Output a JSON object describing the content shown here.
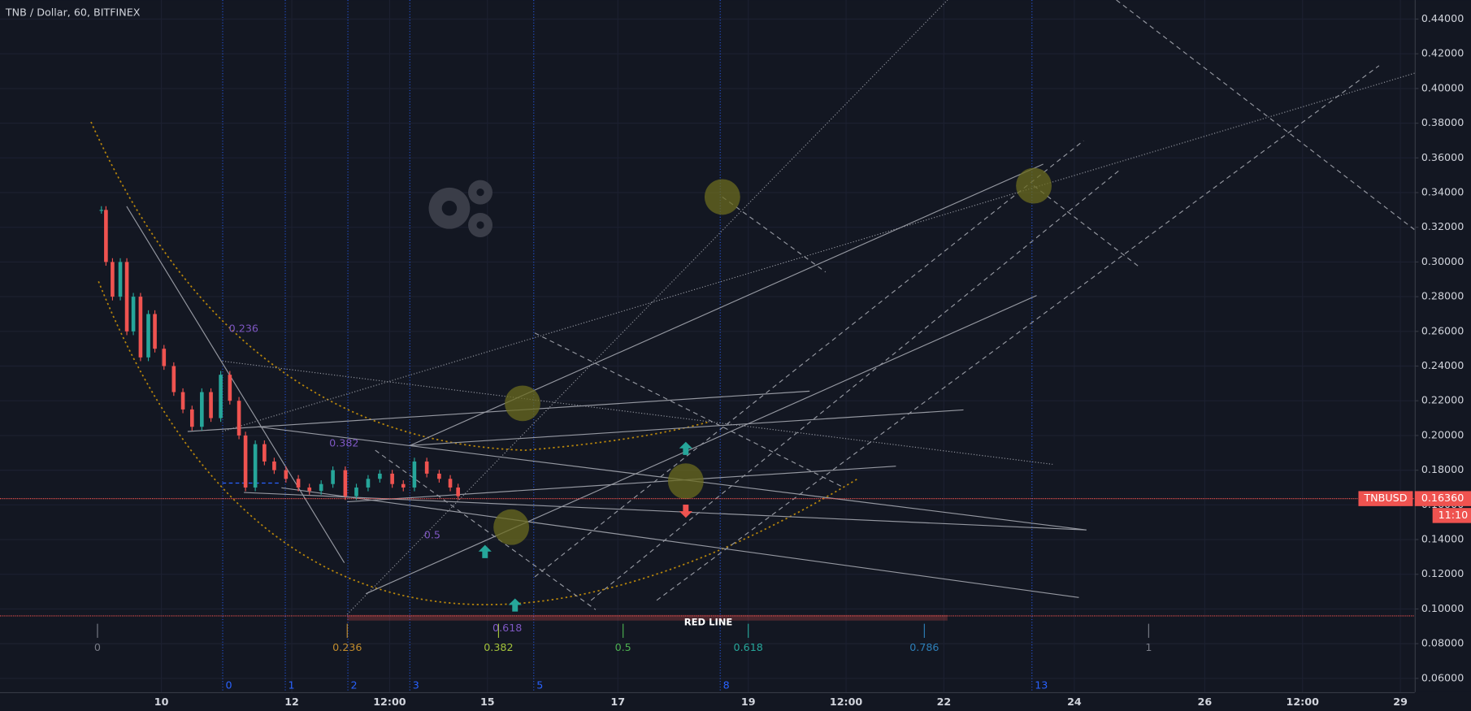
{
  "chart_data": {
    "type": "candlestick",
    "title": "TNB / Dollar, 60, BITFINEX",
    "x": [
      9.08,
      9.15,
      9.25,
      9.37,
      9.47,
      9.57,
      9.68,
      9.8,
      9.9,
      10.04,
      10.19,
      10.33,
      10.47,
      10.62,
      10.76,
      10.91,
      11.05,
      11.19,
      11.29,
      11.44,
      11.58,
      11.73,
      11.91,
      12.1,
      12.27,
      12.45,
      12.63,
      12.82,
      12.99,
      13.17,
      13.35,
      13.54,
      13.71,
      13.88,
      14.07,
      14.26,
      14.43,
      14.55
    ],
    "values": [
      0.33,
      0.3,
      0.28,
      0.3,
      0.26,
      0.28,
      0.245,
      0.27,
      0.25,
      0.24,
      0.225,
      0.215,
      0.205,
      0.225,
      0.21,
      0.235,
      0.22,
      0.2,
      0.17,
      0.195,
      0.185,
      0.18,
      0.175,
      0.17,
      0.168,
      0.172,
      0.18,
      0.165,
      0.17,
      0.175,
      0.178,
      0.172,
      0.17,
      0.185,
      0.178,
      0.175,
      0.17,
      0.165
    ],
    "up_color": "#26a69a",
    "down_color": "#ef5350",
    "xlim": [
      7.525,
      29.22
    ],
    "ylim": [
      0.052,
      0.451
    ],
    "xticks": [
      10,
      12,
      {
        "value": 13.5,
        "label": "12:00"
      },
      15,
      17,
      19,
      {
        "value": 20.5,
        "label": "12:00"
      },
      22,
      24,
      26,
      {
        "value": 27.5,
        "label": "12:00"
      },
      29
    ],
    "yticks": [
      {
        "value": 0.06,
        "label": "0.06000"
      },
      {
        "value": 0.08,
        "label": "0.08000"
      },
      {
        "value": 0.1,
        "label": "0.10000"
      },
      {
        "value": 0.12,
        "label": "0.12000"
      },
      {
        "value": 0.14,
        "label": "0.14000"
      },
      {
        "value": 0.16,
        "label": "0.16000"
      },
      {
        "value": 0.18,
        "label": "0.18000"
      },
      {
        "value": 0.2,
        "label": "0.20000"
      },
      {
        "value": 0.22,
        "label": "0.22000"
      },
      {
        "value": 0.24,
        "label": "0.24000"
      },
      {
        "value": 0.26,
        "label": "0.26000"
      },
      {
        "value": 0.28,
        "label": "0.28000"
      },
      {
        "value": 0.3,
        "label": "0.30000"
      },
      {
        "value": 0.32,
        "label": "0.32000"
      },
      {
        "value": 0.34,
        "label": "0.34000"
      },
      {
        "value": 0.36,
        "label": "0.36000"
      },
      {
        "value": 0.38,
        "label": "0.38000"
      },
      {
        "value": 0.4,
        "label": "0.40000"
      },
      {
        "value": 0.42,
        "label": "0.42000"
      },
      {
        "value": 0.44,
        "label": "0.44000"
      }
    ],
    "grid": true,
    "last_price": {
      "symbol": "TNBUSD",
      "value": 0.1636,
      "label": "0.16360",
      "countdown": "11:10",
      "color": "#ef5350"
    },
    "red_line": {
      "label": "RED LINE",
      "value": 0.096,
      "color": "#ef5350"
    },
    "time_zones": {
      "labels": [
        "0",
        "1",
        "2",
        "3",
        "5",
        "8",
        "13"
      ],
      "x": [
        10.94,
        11.9,
        12.86,
        13.81,
        15.71,
        18.57,
        23.35
      ],
      "color": "#2962ff"
    },
    "fib_time": {
      "labels": [
        "0",
        "0.236",
        "0.382",
        "0.5",
        "0.618",
        "0.786",
        "1"
      ],
      "x": [
        9.02,
        12.85,
        15.17,
        17.08,
        19.0,
        21.7,
        25.14
      ],
      "colors": [
        "#787b86",
        "#c08b2c",
        "#a3c23a",
        "#4caf50",
        "#26a69a",
        "#2d7fb8",
        "#787b86"
      ]
    },
    "fib_levels": {
      "labels": [
        "0.236",
        "0.382",
        "0.5",
        "0.618"
      ],
      "color": "#7e57c2"
    }
  }
}
